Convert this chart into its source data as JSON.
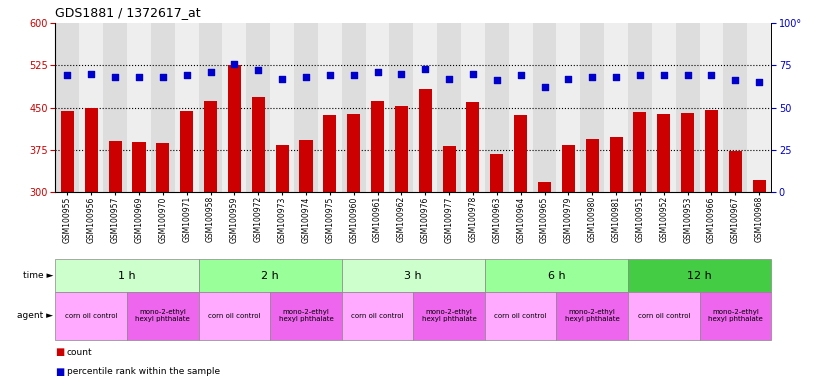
{
  "title": "GDS1881 / 1372617_at",
  "samples": [
    "GSM100955",
    "GSM100956",
    "GSM100957",
    "GSM100969",
    "GSM100970",
    "GSM100971",
    "GSM100958",
    "GSM100959",
    "GSM100972",
    "GSM100973",
    "GSM100974",
    "GSM100975",
    "GSM100960",
    "GSM100961",
    "GSM100962",
    "GSM100976",
    "GSM100977",
    "GSM100978",
    "GSM100963",
    "GSM100964",
    "GSM100965",
    "GSM100979",
    "GSM100980",
    "GSM100981",
    "GSM100951",
    "GSM100952",
    "GSM100953",
    "GSM100966",
    "GSM100967",
    "GSM100968"
  ],
  "counts": [
    443,
    449,
    390,
    388,
    387,
    443,
    462,
    526,
    469,
    383,
    393,
    437,
    438,
    461,
    452,
    483,
    382,
    459,
    368,
    436,
    318,
    383,
    394,
    397,
    442,
    438,
    440,
    446,
    373,
    322
  ],
  "percentiles": [
    69,
    70,
    68,
    68,
    68,
    69,
    71,
    76,
    72,
    67,
    68,
    69,
    69,
    71,
    70,
    73,
    67,
    70,
    66,
    69,
    62,
    67,
    68,
    68,
    69,
    69,
    69,
    69,
    66,
    65
  ],
  "ylim_left": [
    300,
    600
  ],
  "ylim_right": [
    0,
    100
  ],
  "yticks_left": [
    300,
    375,
    450,
    525,
    600
  ],
  "yticks_right": [
    0,
    25,
    50,
    75,
    100
  ],
  "bar_color": "#cc0000",
  "dot_color": "#0000cc",
  "time_groups": [
    {
      "label": "1 h",
      "start": 0,
      "end": 6,
      "color": "#ccffcc"
    },
    {
      "label": "2 h",
      "start": 6,
      "end": 12,
      "color": "#99ff99"
    },
    {
      "label": "3 h",
      "start": 12,
      "end": 18,
      "color": "#ccffcc"
    },
    {
      "label": "6 h",
      "start": 18,
      "end": 24,
      "color": "#99ff99"
    },
    {
      "label": "12 h",
      "start": 24,
      "end": 30,
      "color": "#44cc44"
    }
  ],
  "agent_groups": [
    {
      "label": "corn oil control",
      "start": 0,
      "end": 3,
      "color": "#ffaaff"
    },
    {
      "label": "mono-2-ethyl\nhexyl phthalate",
      "start": 3,
      "end": 6,
      "color": "#ee66ee"
    },
    {
      "label": "corn oil control",
      "start": 6,
      "end": 9,
      "color": "#ffaaff"
    },
    {
      "label": "mono-2-ethyl\nhexyl phthalate",
      "start": 9,
      "end": 12,
      "color": "#ee66ee"
    },
    {
      "label": "corn oil control",
      "start": 12,
      "end": 15,
      "color": "#ffaaff"
    },
    {
      "label": "mono-2-ethyl\nhexyl phthalate",
      "start": 15,
      "end": 18,
      "color": "#ee66ee"
    },
    {
      "label": "corn oil control",
      "start": 18,
      "end": 21,
      "color": "#ffaaff"
    },
    {
      "label": "mono-2-ethyl\nhexyl phthalate",
      "start": 21,
      "end": 24,
      "color": "#ee66ee"
    },
    {
      "label": "corn oil control",
      "start": 24,
      "end": 27,
      "color": "#ffaaff"
    },
    {
      "label": "mono-2-ethyl\nhexyl phthalate",
      "start": 27,
      "end": 30,
      "color": "#ee66ee"
    }
  ],
  "col_bg_even": "#dddddd",
  "col_bg_odd": "#eeeeee"
}
